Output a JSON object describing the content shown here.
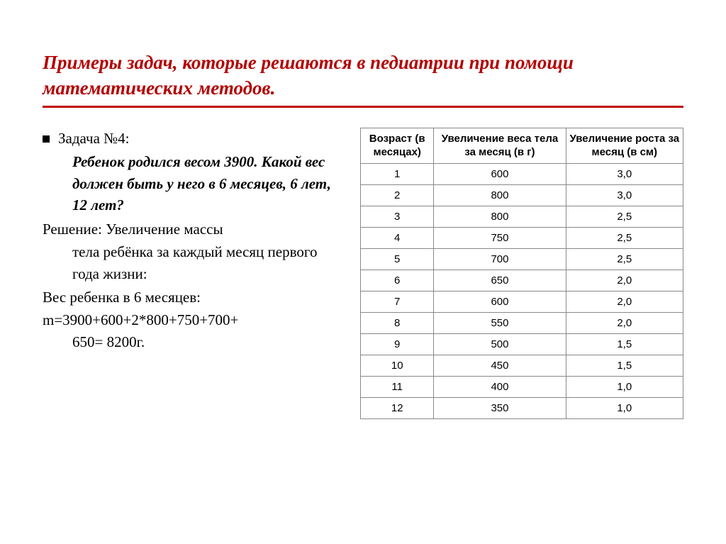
{
  "title": "Примеры задач, которые решаются в педиатрии при помощи математических методов.",
  "task": {
    "number": "Задача №4:",
    "problem": "Ребенок родился весом 3900. Какой вес должен быть у него в 6 месяцев, 6 лет, 12 лет?",
    "solution_label": "Решение:",
    "solution_text": "Увеличение массы тела ребёнка за каждый месяц первого года жизни:",
    "weight_label": "Вес ребенка в 6 месяцев:",
    "formula_l1": "m=3900+600+2*800+750+700+",
    "formula_l2": "650= 8200г."
  },
  "table": {
    "columns": [
      "Возраст (в месяцах)",
      "Увеличение веса тела за месяц (в г)",
      "Увеличение роста за месяц (в см)"
    ],
    "rows": [
      [
        "1",
        "600",
        "3,0"
      ],
      [
        "2",
        "800",
        "3,0"
      ],
      [
        "3",
        "800",
        "2,5"
      ],
      [
        "4",
        "750",
        "2,5"
      ],
      [
        "5",
        "700",
        "2,5"
      ],
      [
        "6",
        "650",
        "2,0"
      ],
      [
        "7",
        "600",
        "2,0"
      ],
      [
        "8",
        "550",
        "2,0"
      ],
      [
        "9",
        "500",
        "1,5"
      ],
      [
        "10",
        "450",
        "1,5"
      ],
      [
        "11",
        "400",
        "1,0"
      ],
      [
        "12",
        "350",
        "1,0"
      ]
    ],
    "col_widths": [
      "100px",
      "180px",
      "160px"
    ],
    "border_color": "#888888",
    "header_fontsize": 15,
    "cell_fontsize": 15
  },
  "colors": {
    "title": "#b30000",
    "underline": "#c00000",
    "text": "#000000",
    "background": "#ffffff"
  }
}
